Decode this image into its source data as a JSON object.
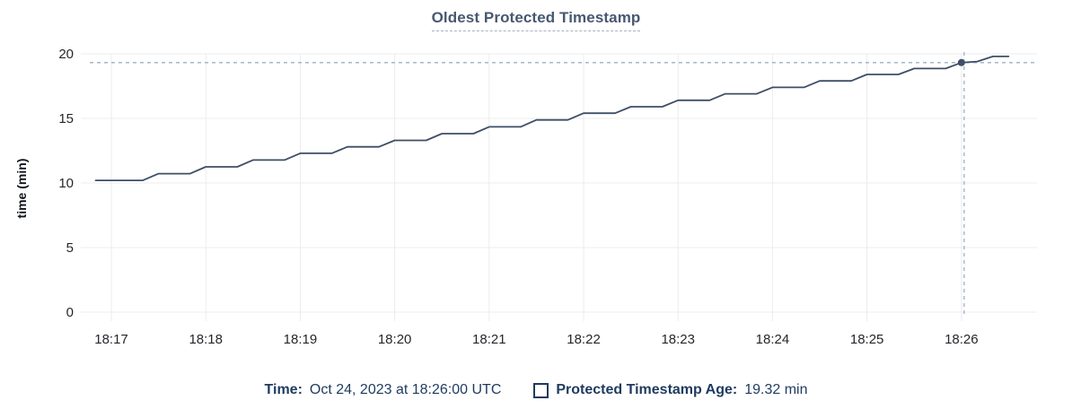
{
  "header": {
    "title": "Oldest Protected Timestamp"
  },
  "y_axis": {
    "title": "time (min)"
  },
  "tooltip_legend": {
    "time_label": "Time:",
    "time_value": "Oct 24, 2023 at 18:26:00 UTC",
    "series_checkbox_state": "unchecked",
    "series_label": "Protected Timestamp Age:",
    "series_value": "19.32 min"
  },
  "colors": {
    "line": "#3e4e66",
    "dot": "#3e4e66",
    "grid": "#ececec",
    "crosshair": "#9db0c2",
    "tick_text": "#24272b",
    "title_text": "#475872",
    "legend_text": "#1e3a5f"
  },
  "chart_data": {
    "type": "line",
    "title": "Oldest Protected Timestamp",
    "xlabel": "",
    "ylabel": "time (min)",
    "ylim": [
      0,
      20
    ],
    "y_ticks": [
      0,
      5,
      10,
      15,
      20
    ],
    "x_tick_labels": [
      "18:17",
      "18:18",
      "18:19",
      "18:20",
      "18:21",
      "18:22",
      "18:23",
      "18:24",
      "18:25",
      "18:26"
    ],
    "x_tick_seconds": [
      0,
      60,
      120,
      180,
      240,
      300,
      360,
      420,
      480,
      540
    ],
    "x_domain_seconds_from_1817": [
      -19.4,
      588
    ],
    "grid": true,
    "legend_position": "bottom",
    "series": [
      {
        "name": "Protected Timestamp Age",
        "unit": "min",
        "points_t_seconds_value_min": [
          [
            -10,
            10.2
          ],
          [
            0,
            10.2
          ],
          [
            20,
            10.2
          ],
          [
            30,
            10.72
          ],
          [
            50,
            10.72
          ],
          [
            60,
            11.25
          ],
          [
            80,
            11.25
          ],
          [
            90,
            11.78
          ],
          [
            110,
            11.78
          ],
          [
            120,
            12.3
          ],
          [
            140,
            12.3
          ],
          [
            150,
            12.8
          ],
          [
            170,
            12.8
          ],
          [
            180,
            13.3
          ],
          [
            200,
            13.3
          ],
          [
            210,
            13.82
          ],
          [
            230,
            13.82
          ],
          [
            240,
            14.35
          ],
          [
            260,
            14.35
          ],
          [
            270,
            14.88
          ],
          [
            290,
            14.88
          ],
          [
            300,
            15.4
          ],
          [
            320,
            15.4
          ],
          [
            330,
            15.9
          ],
          [
            350,
            15.9
          ],
          [
            360,
            16.4
          ],
          [
            380,
            16.4
          ],
          [
            390,
            16.9
          ],
          [
            410,
            16.9
          ],
          [
            420,
            17.4
          ],
          [
            440,
            17.4
          ],
          [
            450,
            17.9
          ],
          [
            470,
            17.9
          ],
          [
            480,
            18.4
          ],
          [
            500,
            18.4
          ],
          [
            510,
            18.86
          ],
          [
            530,
            18.86
          ],
          [
            540,
            19.32
          ],
          [
            550,
            19.4
          ],
          [
            560,
            19.8
          ],
          [
            570,
            19.8
          ]
        ]
      }
    ],
    "crosshair": {
      "t_seconds": 540,
      "time_tick_label": "18:26",
      "value_min": 19.32,
      "style": "dashed"
    }
  }
}
